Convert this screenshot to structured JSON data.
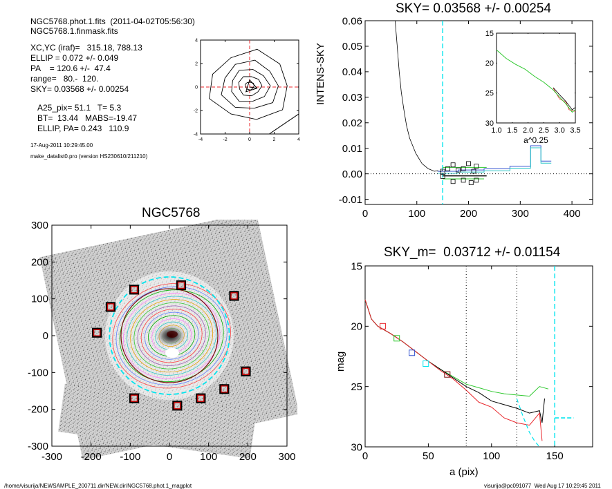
{
  "header": {
    "file_line": "NGC5768.phot.1.fits  (2011-04-02T05:56:30)",
    "mask_line": "NGC5768.1.finmask.fits",
    "params": [
      "XC,YC (iraf)=   315.18, 788.13",
      "ELLIP = 0.072 +/- 0.049",
      "PA    = 120.6 +/-  47.4",
      "range=   80.-  120.",
      "SKY= 0.03568 +/- 0.00254"
    ],
    "results": [
      "A25_pix= 51.1   T= 5.3",
      "BT=  13.44   MABS=-19.47",
      "ELLIP, PA= 0.243   110.9"
    ],
    "date_line": "17-Aug-2011 10:29:45.00",
    "program_line": "make_datalist0.pro (version HS230610/211210)"
  },
  "footer": {
    "path": "/home/visurija/NEWSAMPLE_200711.dir/NEW.dir/NGC5768.phot.1_magplot",
    "user": "visurija@pc091077  Wed Aug 17 10:29:45 2011"
  },
  "colors": {
    "cyan": "#00e5ee",
    "red": "#e8252a",
    "green": "#2ec82e",
    "blue": "#3050d0",
    "black": "#000000",
    "maroon": "#7a1010"
  },
  "chart_data": [
    {
      "id": "contour_plot",
      "type": "contour",
      "title": "",
      "xlabel": "",
      "ylabel": "",
      "xlim": [
        -4,
        4
      ],
      "ylim": [
        -4,
        4
      ],
      "x_ticks": [
        "-4",
        "-2",
        "0",
        "2",
        "4"
      ],
      "y_ticks": [
        "-4",
        "-2",
        "0",
        "2",
        "4"
      ],
      "levels_radius": [
        0.35,
        0.9,
        1.5,
        2.2,
        3.1
      ],
      "crosshair": [
        0,
        0
      ]
    },
    {
      "id": "galaxy_image",
      "type": "image",
      "title": "NGC5768",
      "xlim": [
        -300,
        300
      ],
      "ylim": [
        -300,
        300
      ],
      "x_ticks": [
        "-300",
        "-200",
        "-100",
        "0",
        "100",
        "200",
        "300"
      ],
      "y_ticks": [
        "-300",
        "-200",
        "-100",
        "0",
        "100",
        "200",
        "300"
      ],
      "sky_box_centers": [
        [
          -90,
          125
        ],
        [
          30,
          137
        ],
        [
          165,
          108
        ],
        [
          -150,
          78
        ],
        [
          -185,
          8
        ],
        [
          195,
          -97
        ],
        [
          140,
          -145
        ],
        [
          80,
          -170
        ],
        [
          20,
          -190
        ],
        [
          -90,
          -170
        ]
      ],
      "inner_ellipse_radius": 120,
      "dashed_circle_radius": 150
    },
    {
      "id": "sky_profile",
      "type": "line",
      "title": "SKY= 0.03568 +/- 0.00254",
      "xlabel": "",
      "ylabel": "INTENS-SKY",
      "xlim": [
        0,
        440
      ],
      "ylim": [
        -0.012,
        0.06
      ],
      "x_ticks": [
        "0",
        "100",
        "200",
        "300",
        "400"
      ],
      "y_ticks": [
        "-0.01",
        "0.00",
        "0.01",
        "0.02",
        "0.03",
        "0.04",
        "0.05",
        "0.06"
      ],
      "vline": 150,
      "profile": [
        [
          58,
          0.06
        ],
        [
          62,
          0.05
        ],
        [
          66,
          0.04
        ],
        [
          70,
          0.032
        ],
        [
          75,
          0.025
        ],
        [
          80,
          0.019
        ],
        [
          86,
          0.014
        ],
        [
          92,
          0.011
        ],
        [
          98,
          0.008
        ],
        [
          104,
          0.006
        ],
        [
          110,
          0.004
        ],
        [
          116,
          0.003
        ],
        [
          122,
          0.002
        ],
        [
          128,
          0.0015
        ],
        [
          134,
          0.001
        ],
        [
          140,
          0.0012
        ],
        [
          146,
          0.0008
        ],
        [
          150,
          0.0015
        ]
      ],
      "blue_steps": [
        [
          140,
          0.001
        ],
        [
          180,
          0.0015
        ],
        [
          230,
          0.002
        ],
        [
          280,
          0.003
        ],
        [
          320,
          0.011
        ],
        [
          340,
          0.005
        ],
        [
          360,
          0.005
        ]
      ],
      "sky_squares": [
        [
          150,
          0.001
        ],
        [
          160,
          0.002
        ],
        [
          170,
          0.0035
        ],
        [
          180,
          0.0015
        ],
        [
          190,
          0.002
        ],
        [
          200,
          0.004
        ],
        [
          210,
          0.001
        ],
        [
          215,
          0.003
        ],
        [
          150,
          -0.001
        ],
        [
          170,
          -0.003
        ],
        [
          190,
          -0.0025
        ],
        [
          205,
          -0.0035
        ],
        [
          215,
          -0.0025
        ]
      ]
    },
    {
      "id": "sky_inset",
      "type": "line",
      "title": "",
      "xlabel": "a^0.25",
      "ylabel": "",
      "xlim": [
        1.0,
        3.5
      ],
      "ylim": [
        30,
        15
      ],
      "x_ticks": [
        "1.0",
        "1.5",
        "2.0",
        "2.5",
        "3.0",
        "3.5"
      ],
      "y_ticks": [
        "15",
        "20",
        "25",
        "30"
      ],
      "series": [
        {
          "x": [
            1.0,
            1.3,
            1.6,
            1.9,
            2.2,
            2.5,
            2.8,
            3.0,
            3.2,
            3.3,
            3.4,
            3.5
          ],
          "y": [
            17.8,
            19.2,
            20.2,
            21.0,
            22.2,
            23.2,
            24.5,
            25.7,
            26.8,
            27.5,
            28.2,
            27.8
          ]
        }
      ]
    },
    {
      "id": "mag_profile",
      "type": "line",
      "title": "SKY_m=  0.03712 +/- 0.01154",
      "xlabel": "a (pix)",
      "ylabel": "mag",
      "xlim": [
        0,
        180
      ],
      "ylim": [
        30,
        15
      ],
      "x_ticks": [
        "0",
        "50",
        "100",
        "150"
      ],
      "y_ticks": [
        "15",
        "20",
        "25",
        "30"
      ],
      "vlines_dotted": [
        80,
        120
      ],
      "vline_dashed": 150,
      "series": [
        {
          "color": "green",
          "x": [
            0,
            5,
            10,
            20,
            30,
            40,
            50,
            60,
            70,
            80,
            90,
            100,
            110,
            120,
            130,
            138,
            145
          ],
          "y": [
            17.8,
            19.4,
            20.0,
            20.6,
            21.3,
            22.1,
            22.9,
            23.6,
            24.2,
            24.8,
            25.1,
            25.4,
            25.6,
            25.7,
            25.8,
            25.0,
            25.2
          ]
        },
        {
          "color": "black",
          "x": [
            0,
            5,
            10,
            20,
            30,
            40,
            50,
            60,
            70,
            80,
            90,
            100,
            110,
            120,
            130,
            138,
            140,
            142
          ],
          "y": [
            17.8,
            19.4,
            20.0,
            20.6,
            21.3,
            22.1,
            22.9,
            23.6,
            24.3,
            25.0,
            25.5,
            26.2,
            26.5,
            26.8,
            27.2,
            27.0,
            28.0,
            26.0
          ]
        },
        {
          "color": "red",
          "x": [
            0,
            5,
            10,
            20,
            30,
            40,
            50,
            60,
            70,
            80,
            90,
            100,
            110,
            120,
            130,
            138,
            140
          ],
          "y": [
            17.8,
            19.4,
            20.0,
            20.6,
            21.3,
            22.1,
            22.9,
            23.7,
            24.4,
            25.3,
            26.3,
            26.7,
            27.6,
            28.0,
            28.2,
            27.2,
            29.5
          ]
        }
      ],
      "squares": [
        {
          "x": 14,
          "y": 20.0,
          "color": "red"
        },
        {
          "x": 25,
          "y": 21.0,
          "color": "green"
        },
        {
          "x": 37,
          "y": 22.2,
          "color": "blue"
        },
        {
          "x": 48,
          "y": 23.1,
          "color": "cyan"
        },
        {
          "x": 65,
          "y": 24.0,
          "color": "maroon"
        }
      ],
      "sky_tail": {
        "x": [
          150,
          165
        ],
        "y": 27.6
      }
    }
  ]
}
